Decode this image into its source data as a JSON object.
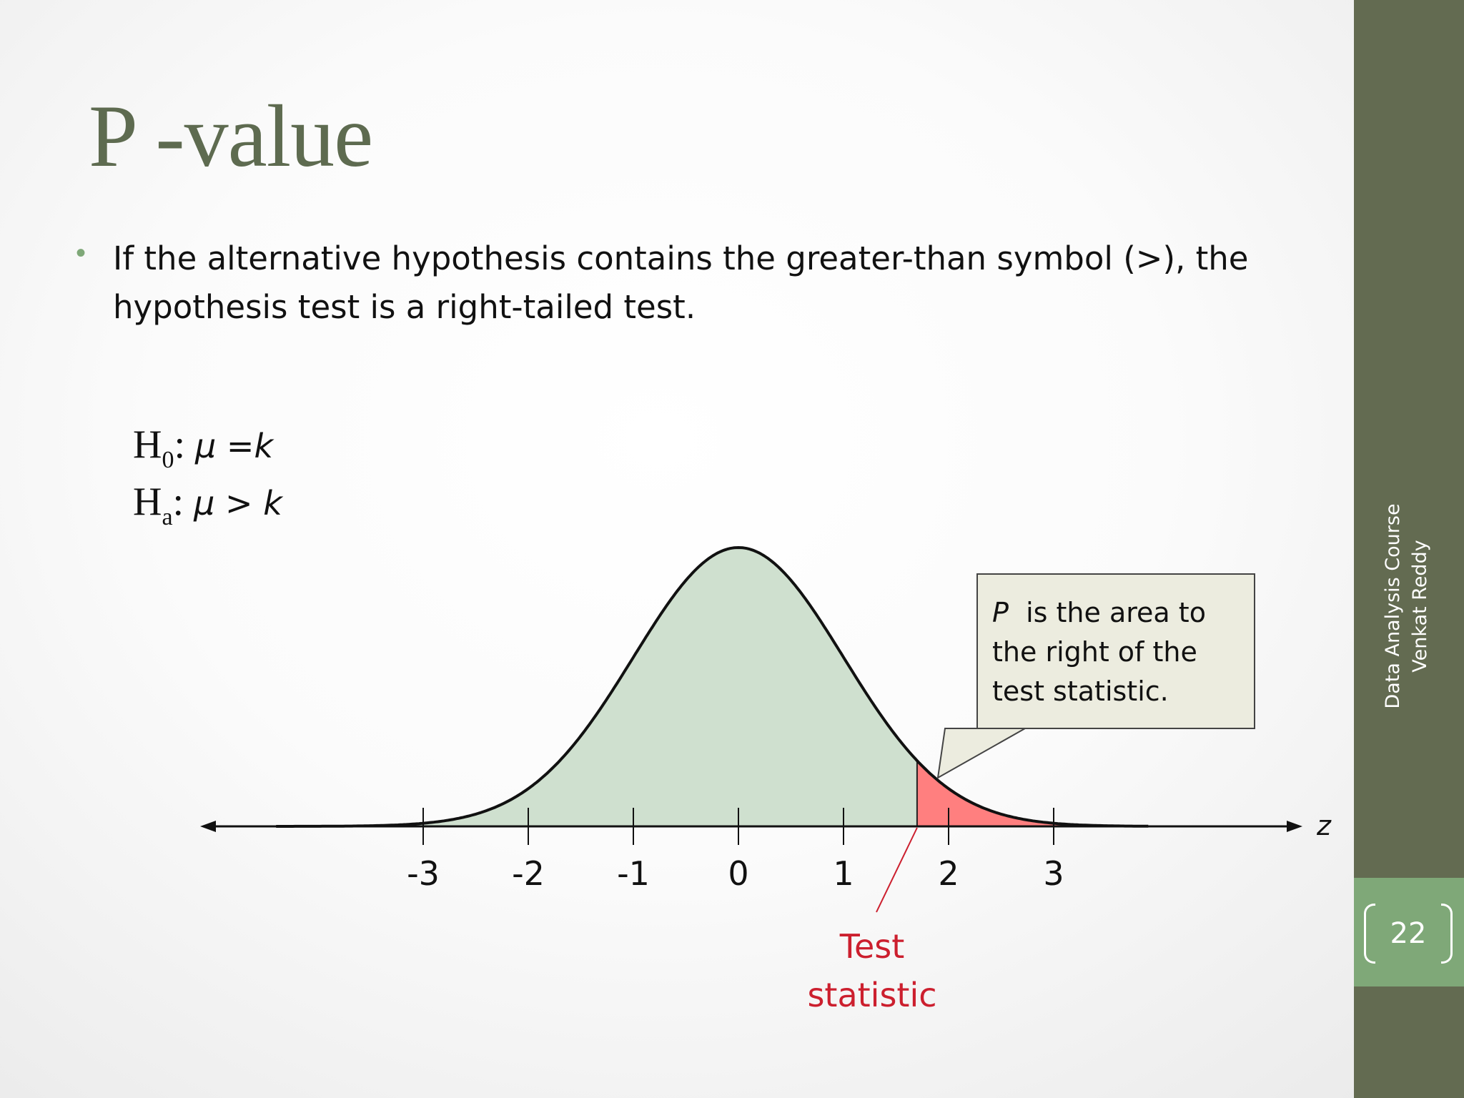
{
  "slide": {
    "title": "P -value",
    "bullet": "If the alternative hypothesis contains the greater-than symbol (>), the hypothesis test is a right-tailed test."
  },
  "hypotheses": {
    "null": {
      "letter": "H",
      "subscript": "0",
      "colon": ":",
      "mu": "μ",
      "relation": " =",
      "k": "k"
    },
    "alt": {
      "letter": "H",
      "subscript": "a",
      "colon": ":",
      "mu": "μ",
      "relation": " > ",
      "k": "k"
    }
  },
  "diagram": {
    "axis_variable": "z",
    "ticks": [
      "-3",
      "-2",
      "-1",
      "0",
      "1",
      "2",
      "3"
    ],
    "tick_values": [
      -3,
      -2,
      -1,
      0,
      1,
      2,
      3
    ],
    "test_statistic_value": 1.7,
    "curve_color": "#cfe0cf",
    "tail_color": "#ff7f7f",
    "callout": {
      "p_letter": "P",
      "text_line1": "is the area to",
      "text_line2": "the right of the",
      "text_line3": "test statistic."
    },
    "test_statistic_label": {
      "line1": "Test",
      "line2": "statistic"
    }
  },
  "sidebar": {
    "course": "Data Analysis Course",
    "author": "Venkat Reddy",
    "page_number": "22",
    "color": "#636b51",
    "page_box_color": "#7fa878"
  }
}
